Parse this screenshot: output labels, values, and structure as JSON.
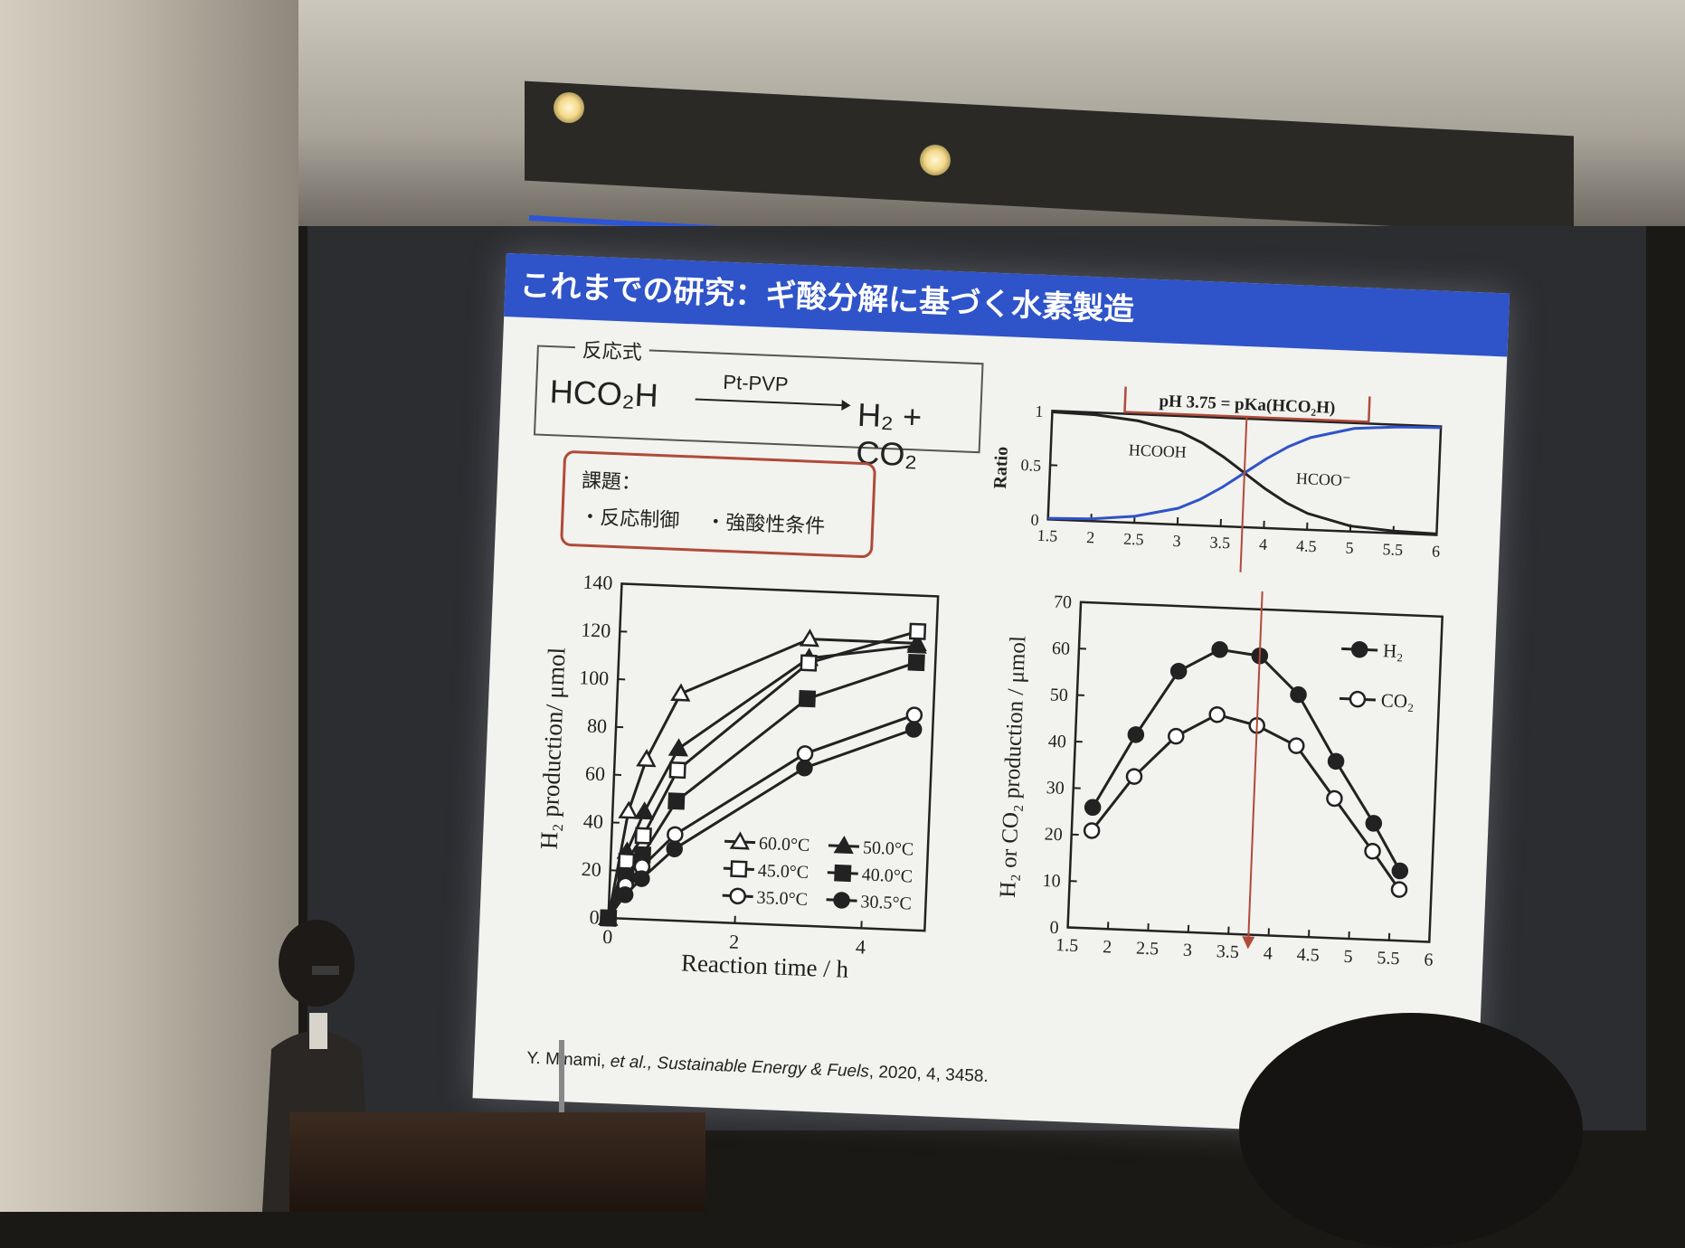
{
  "slide": {
    "title": "これまでの研究：ギ酸分解に基づく水素製造",
    "reaction_label": "反応式",
    "reactant": "HCO₂H",
    "catalyst": "Pt-PVP",
    "products": "H₂ + CO₂",
    "issues_title": "課題：",
    "issues": [
      "・反応制御",
      "・強酸性条件"
    ],
    "citation_author": "Y. Minami, ",
    "citation_etal": "et al., ",
    "citation_journal": "Sustainable Energy & Fuels",
    "citation_rest": ", 2020, 4, 3458."
  },
  "colors": {
    "title_bar": "#2f53c9",
    "issue_border": "#b04a3a",
    "hcooh_line": "#222222",
    "hcoo_line": "#2f53c9",
    "pka_marker": "#b04a3a"
  },
  "chart_data": [
    {
      "type": "line",
      "xlabel": "Reaction time / h",
      "ylabel": "H₂ production/ μmol",
      "xlim": [
        0,
        5
      ],
      "ylim": [
        0,
        140
      ],
      "xticks": [
        0,
        2,
        4
      ],
      "yticks": [
        0,
        20,
        40,
        60,
        80,
        100,
        120,
        140
      ],
      "legend_position": "bottom-right",
      "series": [
        {
          "name": "60.0°C",
          "marker": "open-triangle",
          "x": [
            0,
            0.25,
            0.5,
            1,
            3,
            4.7
          ],
          "y": [
            0,
            45,
            67,
            95,
            120,
            120
          ]
        },
        {
          "name": "50.0°C",
          "marker": "filled-triangle",
          "x": [
            0,
            0.25,
            0.5,
            1,
            3,
            4.7
          ],
          "y": [
            0,
            28,
            45,
            72,
            112,
            119
          ]
        },
        {
          "name": "45.0°C",
          "marker": "open-square",
          "x": [
            0,
            0.25,
            0.5,
            1,
            3,
            4.7
          ],
          "y": [
            0,
            24,
            35,
            63,
            110,
            125
          ]
        },
        {
          "name": "40.0°C",
          "marker": "filled-square",
          "x": [
            0,
            0.25,
            0.5,
            1,
            3,
            4.7
          ],
          "y": [
            0,
            18,
            27,
            50,
            95,
            112
          ]
        },
        {
          "name": "35.0°C",
          "marker": "open-circle",
          "x": [
            0,
            0.25,
            0.5,
            1,
            3,
            4.7
          ],
          "y": [
            0,
            14,
            22,
            36,
            72,
            90
          ]
        },
        {
          "name": "30.5°C",
          "marker": "filled-circle",
          "x": [
            0,
            0.25,
            0.5,
            1,
            3,
            4.7
          ],
          "y": [
            0,
            10,
            17,
            30,
            66,
            84
          ]
        }
      ]
    },
    {
      "type": "line",
      "title": "pH 3.75 = pKa(HCO₂H)",
      "ylabel": "Ratio",
      "xlim": [
        1.5,
        6
      ],
      "ylim": [
        0,
        1
      ],
      "xticks": [
        1.5,
        2,
        2.5,
        3,
        3.5,
        4,
        4.5,
        5,
        5.5,
        6
      ],
      "yticks": [
        0,
        0.5,
        1
      ],
      "marker_x": 3.75,
      "series": [
        {
          "name": "HCOOH",
          "x": [
            1.5,
            2,
            2.5,
            3,
            3.25,
            3.5,
            3.75,
            4,
            4.25,
            4.5,
            5,
            5.5,
            6
          ],
          "y": [
            0.99,
            0.98,
            0.94,
            0.85,
            0.76,
            0.64,
            0.5,
            0.36,
            0.24,
            0.15,
            0.05,
            0.02,
            0.01
          ]
        },
        {
          "name": "HCOO⁻",
          "x": [
            1.5,
            2,
            2.5,
            3,
            3.25,
            3.5,
            3.75,
            4,
            4.25,
            4.5,
            5,
            5.5,
            6
          ],
          "y": [
            0.01,
            0.02,
            0.06,
            0.15,
            0.24,
            0.36,
            0.5,
            0.64,
            0.76,
            0.85,
            0.95,
            0.98,
            0.99
          ]
        }
      ]
    },
    {
      "type": "line",
      "ylabel": "H₂ or CO₂ production / μmol",
      "xlim": [
        1.5,
        6
      ],
      "ylim": [
        0,
        70
      ],
      "xticks": [
        1.5,
        2,
        2.5,
        3,
        3.5,
        4,
        4.5,
        5,
        5.5,
        6
      ],
      "yticks": [
        0,
        10,
        20,
        30,
        40,
        50,
        60,
        70
      ],
      "legend_position": "top-right",
      "series": [
        {
          "name": "H₂",
          "marker": "filled-circle",
          "x": [
            1.75,
            2.25,
            2.75,
            3.25,
            3.75,
            4.25,
            4.75,
            5.25,
            5.6
          ],
          "y": [
            26,
            42,
            56,
            61,
            60,
            52,
            38,
            25,
            15
          ]
        },
        {
          "name": "CO₂",
          "marker": "open-circle",
          "x": [
            1.75,
            2.25,
            2.75,
            3.25,
            3.75,
            4.25,
            4.75,
            5.25,
            5.6
          ],
          "y": [
            21,
            33,
            42,
            47,
            45,
            41,
            30,
            19,
            11
          ]
        }
      ]
    }
  ]
}
